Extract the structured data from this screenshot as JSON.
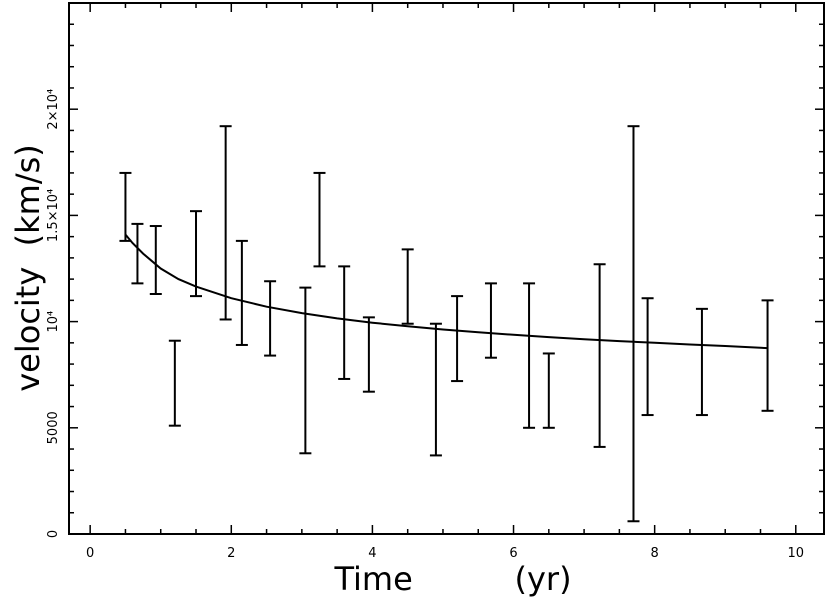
{
  "chart_data": {
    "type": "scatter",
    "title": "",
    "xlabel": "Time          (yr)",
    "ylabel": "velocity  (km/s)",
    "xlim": [
      -0.3,
      10.4
    ],
    "ylim": [
      0,
      25000
    ],
    "x_ticks": [
      {
        "value": 0,
        "label": "0"
      },
      {
        "value": 2,
        "label": "2"
      },
      {
        "value": 4,
        "label": "4"
      },
      {
        "value": 6,
        "label": "6"
      },
      {
        "value": 8,
        "label": "8"
      },
      {
        "value": 10,
        "label": "10"
      }
    ],
    "y_ticks": [
      {
        "value": 0,
        "label": "0"
      },
      {
        "value": 5000,
        "label": "5000"
      },
      {
        "value": 10000,
        "label": "10⁴"
      },
      {
        "value": 15000,
        "label": "1.5×10⁴"
      },
      {
        "value": 20000,
        "label": "2×10⁴"
      }
    ],
    "grid": false,
    "series": [
      {
        "kind": "errorbars",
        "points": [
          {
            "x": 0.5,
            "low": 13800,
            "high": 17000
          },
          {
            "x": 0.67,
            "low": 11800,
            "high": 14600
          },
          {
            "x": 0.93,
            "low": 11300,
            "high": 14500
          },
          {
            "x": 1.2,
            "low": 5100,
            "high": 9100
          },
          {
            "x": 1.5,
            "low": 11200,
            "high": 15200
          },
          {
            "x": 1.92,
            "low": 10100,
            "high": 19200
          },
          {
            "x": 2.15,
            "low": 8900,
            "high": 13800
          },
          {
            "x": 2.55,
            "low": 8400,
            "high": 11900
          },
          {
            "x": 3.05,
            "low": 3800,
            "high": 11600
          },
          {
            "x": 3.25,
            "low": 12600,
            "high": 17000
          },
          {
            "x": 3.6,
            "low": 7300,
            "high": 12600
          },
          {
            "x": 3.95,
            "low": 6700,
            "high": 10200
          },
          {
            "x": 4.5,
            "low": 9900,
            "high": 13400
          },
          {
            "x": 4.9,
            "low": 3700,
            "high": 9900
          },
          {
            "x": 5.2,
            "low": 7200,
            "high": 11200
          },
          {
            "x": 5.68,
            "low": 8300,
            "high": 11800
          },
          {
            "x": 6.22,
            "low": 5000,
            "high": 11800
          },
          {
            "x": 6.5,
            "low": 5000,
            "high": 8500
          },
          {
            "x": 7.22,
            "low": 4100,
            "high": 12700
          },
          {
            "x": 7.7,
            "low": 600,
            "high": 19200
          },
          {
            "x": 7.9,
            "low": 5600,
            "high": 11100
          },
          {
            "x": 8.67,
            "low": 5600,
            "high": 10600
          },
          {
            "x": 9.6,
            "low": 5800,
            "high": 11000
          }
        ]
      },
      {
        "kind": "line",
        "x": [
          0.5,
          0.6,
          0.75,
          1.0,
          1.25,
          1.5,
          2.0,
          2.5,
          3.0,
          3.5,
          4.0,
          4.5,
          5.0,
          5.5,
          6.0,
          6.5,
          7.0,
          7.5,
          8.0,
          8.5,
          9.0,
          9.6
        ],
        "y": [
          14100,
          13700,
          13200,
          12500,
          12000,
          11650,
          11100,
          10700,
          10400,
          10150,
          9950,
          9780,
          9630,
          9500,
          9380,
          9270,
          9170,
          9080,
          9000,
          8920,
          8850,
          8750
        ]
      }
    ]
  }
}
